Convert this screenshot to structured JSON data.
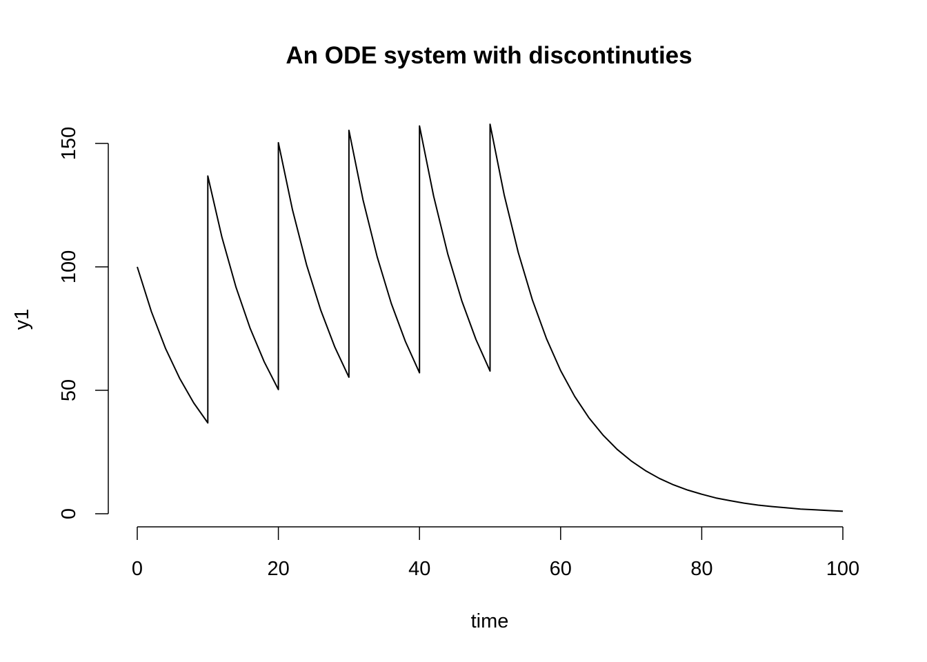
{
  "chart_data": {
    "type": "line",
    "title": "An ODE system with discontinuties",
    "xlabel": "time",
    "ylabel": "y1",
    "xlim": [
      0,
      100
    ],
    "ylim": [
      0,
      160
    ],
    "xticks": [
      0,
      20,
      40,
      60,
      80,
      100
    ],
    "xtick_labels": [
      "0",
      "20",
      "40",
      "60",
      "80",
      "100"
    ],
    "yticks": [
      0,
      50,
      100,
      150
    ],
    "ytick_labels": [
      "0",
      "50",
      "100",
      "150"
    ],
    "grid": false,
    "legend": "none",
    "line_color": "#000000",
    "series": [
      {
        "x": [
          0,
          2,
          4,
          6,
          8,
          10,
          10,
          12,
          14,
          16,
          18,
          20,
          20,
          22,
          24,
          26,
          28,
          30,
          30,
          32,
          34,
          36,
          38,
          40,
          40,
          42,
          44,
          46,
          48,
          50,
          50,
          52,
          54,
          56,
          58,
          60,
          62,
          64,
          66,
          68,
          70,
          72,
          74,
          76,
          78,
          80,
          82,
          84,
          86,
          88,
          90,
          92,
          94,
          96,
          98,
          100
        ],
        "values": [
          100,
          81.9,
          67.0,
          54.9,
          44.9,
          36.8,
          136.8,
          112.0,
          91.7,
          75.1,
          61.5,
          50.3,
          150.3,
          123.1,
          100.8,
          82.5,
          67.5,
          55.3,
          155.3,
          127.1,
          104.1,
          85.2,
          69.8,
          57.1,
          157.1,
          128.7,
          105.3,
          86.2,
          70.6,
          57.8,
          157.8,
          129.2,
          105.8,
          86.6,
          70.9,
          58.0,
          47.5,
          38.9,
          31.9,
          26.1,
          21.4,
          17.5,
          14.3,
          11.7,
          9.6,
          7.9,
          6.4,
          5.3,
          4.3,
          3.5,
          2.9,
          2.4,
          1.9,
          1.6,
          1.3,
          1.0
        ]
      }
    ]
  }
}
